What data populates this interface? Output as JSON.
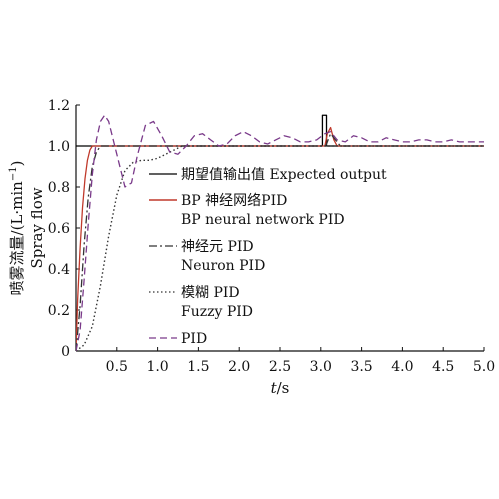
{
  "chart_data": {
    "type": "line",
    "xlabel": {
      "italic": "t",
      "unit": "/s"
    },
    "ylabel": {
      "line1": "喷雾流量/(L·min",
      "superscript": "−1",
      "close": ")",
      "line2": "Spray flow"
    },
    "xlim": [
      0,
      5
    ],
    "ylim": [
      0,
      1.2
    ],
    "x_ticks": [
      "0.5",
      "1.0",
      "1.5",
      "2.0",
      "2.5",
      "3.0",
      "3.5",
      "4.0",
      "4.5",
      "5.0"
    ],
    "y_ticks": [
      "0",
      "0.2",
      "0.4",
      "0.6",
      "0.8",
      "1.0",
      "1.2"
    ],
    "grid": false,
    "legend": {
      "placement": "center",
      "entries": [
        {
          "label": "期望值输出值 Expected output"
        },
        {
          "label": "BP 神经网络PID",
          "label2": "BP neural network PID"
        },
        {
          "label": "神经元 PID",
          "label2": "Neuron PID"
        },
        {
          "label": "模糊 PID",
          "label2": "Fuzzy PID"
        },
        {
          "label": "PID"
        }
      ]
    },
    "series": [
      {
        "key": "expected",
        "color": "#000000",
        "dash": "solid",
        "points": [
          [
            0,
            1.0
          ],
          [
            3.0,
            1.0
          ],
          [
            3.0,
            1.0
          ],
          [
            3.02,
            1.0
          ],
          [
            3.02,
            1.15
          ],
          [
            3.07,
            1.15
          ],
          [
            3.07,
            1.0
          ],
          [
            5.0,
            1.0
          ]
        ]
      },
      {
        "key": "bp",
        "color": "#c0392b",
        "dash": "solid",
        "points": [
          [
            0,
            0
          ],
          [
            0.02,
            0.25
          ],
          [
            0.05,
            0.5
          ],
          [
            0.08,
            0.7
          ],
          [
            0.11,
            0.84
          ],
          [
            0.14,
            0.93
          ],
          [
            0.17,
            0.98
          ],
          [
            0.2,
            1.0
          ],
          [
            3.0,
            1.0
          ],
          [
            3.05,
            1.0
          ],
          [
            3.08,
            1.06
          ],
          [
            3.12,
            1.09
          ],
          [
            3.16,
            1.03
          ],
          [
            3.2,
            1.0
          ],
          [
            5.0,
            1.0
          ]
        ]
      },
      {
        "key": "neuron",
        "color": "#333333",
        "dash": "dashdot",
        "points": [
          [
            0,
            0
          ],
          [
            0.05,
            0.22
          ],
          [
            0.1,
            0.52
          ],
          [
            0.15,
            0.75
          ],
          [
            0.2,
            0.9
          ],
          [
            0.25,
            0.97
          ],
          [
            0.3,
            1.0
          ],
          [
            3.0,
            1.0
          ],
          [
            3.06,
            1.0
          ],
          [
            3.12,
            1.06
          ],
          [
            3.18,
            1.03
          ],
          [
            3.24,
            1.0
          ],
          [
            5.0,
            1.0
          ]
        ]
      },
      {
        "key": "fuzzy",
        "color": "#333333",
        "dash": "dotted",
        "points": [
          [
            0,
            0
          ],
          [
            0.1,
            0.03
          ],
          [
            0.2,
            0.12
          ],
          [
            0.3,
            0.32
          ],
          [
            0.4,
            0.56
          ],
          [
            0.5,
            0.76
          ],
          [
            0.6,
            0.88
          ],
          [
            0.7,
            0.92
          ],
          [
            0.8,
            0.93
          ],
          [
            0.9,
            0.93
          ],
          [
            1.0,
            0.94
          ],
          [
            1.1,
            0.96
          ],
          [
            1.2,
            0.98
          ],
          [
            1.3,
            1.0
          ],
          [
            5.0,
            1.0
          ]
        ]
      },
      {
        "key": "pid",
        "color": "#7a3a8a",
        "dash": "dashed",
        "points": [
          [
            0,
            0
          ],
          [
            0.05,
            0.1
          ],
          [
            0.1,
            0.35
          ],
          [
            0.15,
            0.62
          ],
          [
            0.2,
            0.86
          ],
          [
            0.25,
            1.03
          ],
          [
            0.3,
            1.12
          ],
          [
            0.35,
            1.15
          ],
          [
            0.4,
            1.12
          ],
          [
            0.5,
            0.96
          ],
          [
            0.6,
            0.8
          ],
          [
            0.68,
            0.82
          ],
          [
            0.75,
            0.95
          ],
          [
            0.85,
            1.1
          ],
          [
            0.95,
            1.12
          ],
          [
            1.05,
            1.05
          ],
          [
            1.15,
            0.97
          ],
          [
            1.25,
            0.96
          ],
          [
            1.35,
            1.0
          ],
          [
            1.45,
            1.05
          ],
          [
            1.55,
            1.06
          ],
          [
            1.65,
            1.03
          ],
          [
            1.75,
            1.0
          ],
          [
            1.85,
            1.01
          ],
          [
            1.95,
            1.05
          ],
          [
            2.05,
            1.07
          ],
          [
            2.15,
            1.05
          ],
          [
            2.25,
            1.02
          ],
          [
            2.35,
            1.01
          ],
          [
            2.45,
            1.03
          ],
          [
            2.55,
            1.05
          ],
          [
            2.65,
            1.04
          ],
          [
            2.75,
            1.02
          ],
          [
            2.85,
            1.02
          ],
          [
            2.95,
            1.03
          ],
          [
            3.05,
            1.06
          ],
          [
            3.12,
            1.07
          ],
          [
            3.2,
            1.03
          ],
          [
            3.3,
            1.02
          ],
          [
            3.4,
            1.05
          ],
          [
            3.5,
            1.04
          ],
          [
            3.6,
            1.02
          ],
          [
            3.7,
            1.02
          ],
          [
            3.8,
            1.04
          ],
          [
            3.9,
            1.03
          ],
          [
            4.0,
            1.02
          ],
          [
            4.1,
            1.02
          ],
          [
            4.2,
            1.03
          ],
          [
            4.3,
            1.03
          ],
          [
            4.4,
            1.02
          ],
          [
            4.5,
            1.02
          ],
          [
            4.6,
            1.03
          ],
          [
            4.7,
            1.02
          ],
          [
            4.8,
            1.02
          ],
          [
            4.9,
            1.02
          ],
          [
            5.0,
            1.02
          ]
        ]
      }
    ]
  }
}
